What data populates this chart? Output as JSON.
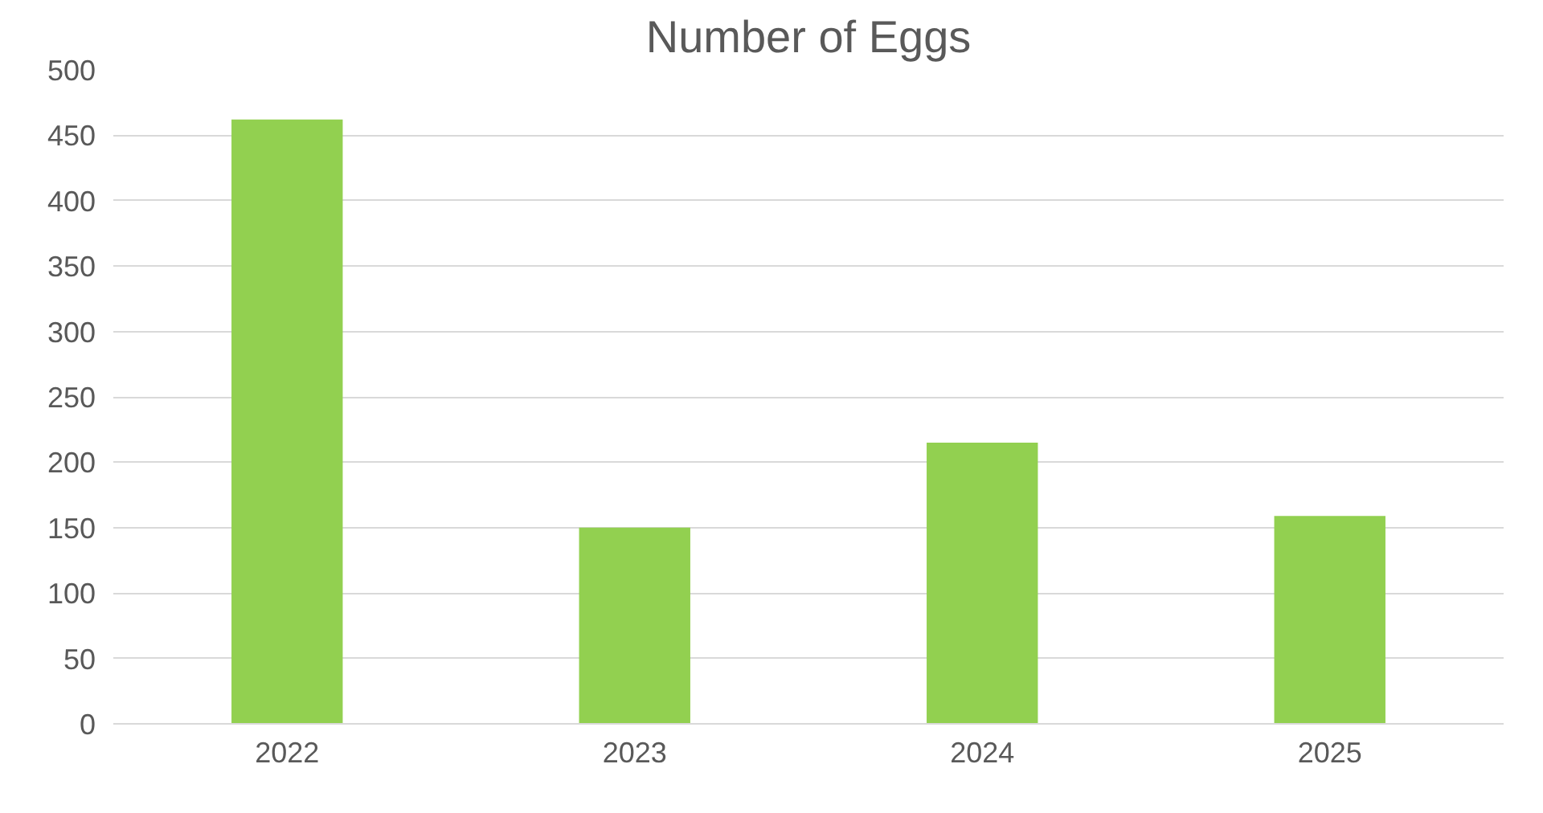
{
  "chart_data": {
    "type": "bar",
    "title": "Number of Eggs",
    "categories": [
      "2022",
      "2023",
      "2024",
      "2025"
    ],
    "values": [
      462,
      150,
      215,
      159
    ],
    "color": "#92d050",
    "ylim": [
      0,
      500
    ],
    "yticks": [
      0,
      50,
      100,
      150,
      200,
      250,
      300,
      350,
      400,
      450,
      500
    ],
    "grid": "y"
  }
}
